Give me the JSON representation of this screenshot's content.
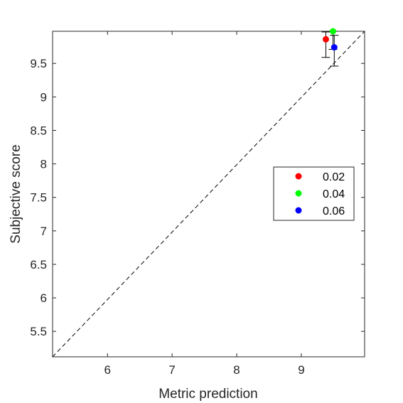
{
  "chart_data": {
    "type": "scatter",
    "title": "",
    "xlabel": "Metric prediction",
    "ylabel": "Subjective score",
    "xlim": [
      5.15,
      9.98
    ],
    "ylim": [
      5.12,
      9.98
    ],
    "xticks": [
      6,
      7,
      8,
      9
    ],
    "xtick_labels": [
      "6",
      "7",
      "8",
      "9"
    ],
    "yticks": [
      5.5,
      6,
      6.5,
      7,
      7.5,
      8,
      8.5,
      9,
      9.5
    ],
    "ytick_labels": [
      "5.5",
      "6",
      "6.5",
      "7",
      "7.5",
      "8",
      "8.5",
      "9",
      "9.5"
    ],
    "grid": false,
    "legend_position": "right",
    "reference_line": {
      "style": "dashed",
      "color": "#000000",
      "from": [
        5.15,
        5.12
      ],
      "to": [
        9.98,
        9.98
      ]
    },
    "series": [
      {
        "name": "0.02",
        "color": "#ff0000",
        "x": 9.38,
        "y": 9.86,
        "err_low": 9.59,
        "err_high": 9.97
      },
      {
        "name": "0.04",
        "color": "#00ff00",
        "x": 9.49,
        "y": 9.98,
        "err_low": 9.71,
        "err_high": 9.98
      },
      {
        "name": "0.06",
        "color": "#0000ff",
        "x": 9.51,
        "y": 9.74,
        "err_low": 9.46,
        "err_high": 9.92
      }
    ]
  }
}
